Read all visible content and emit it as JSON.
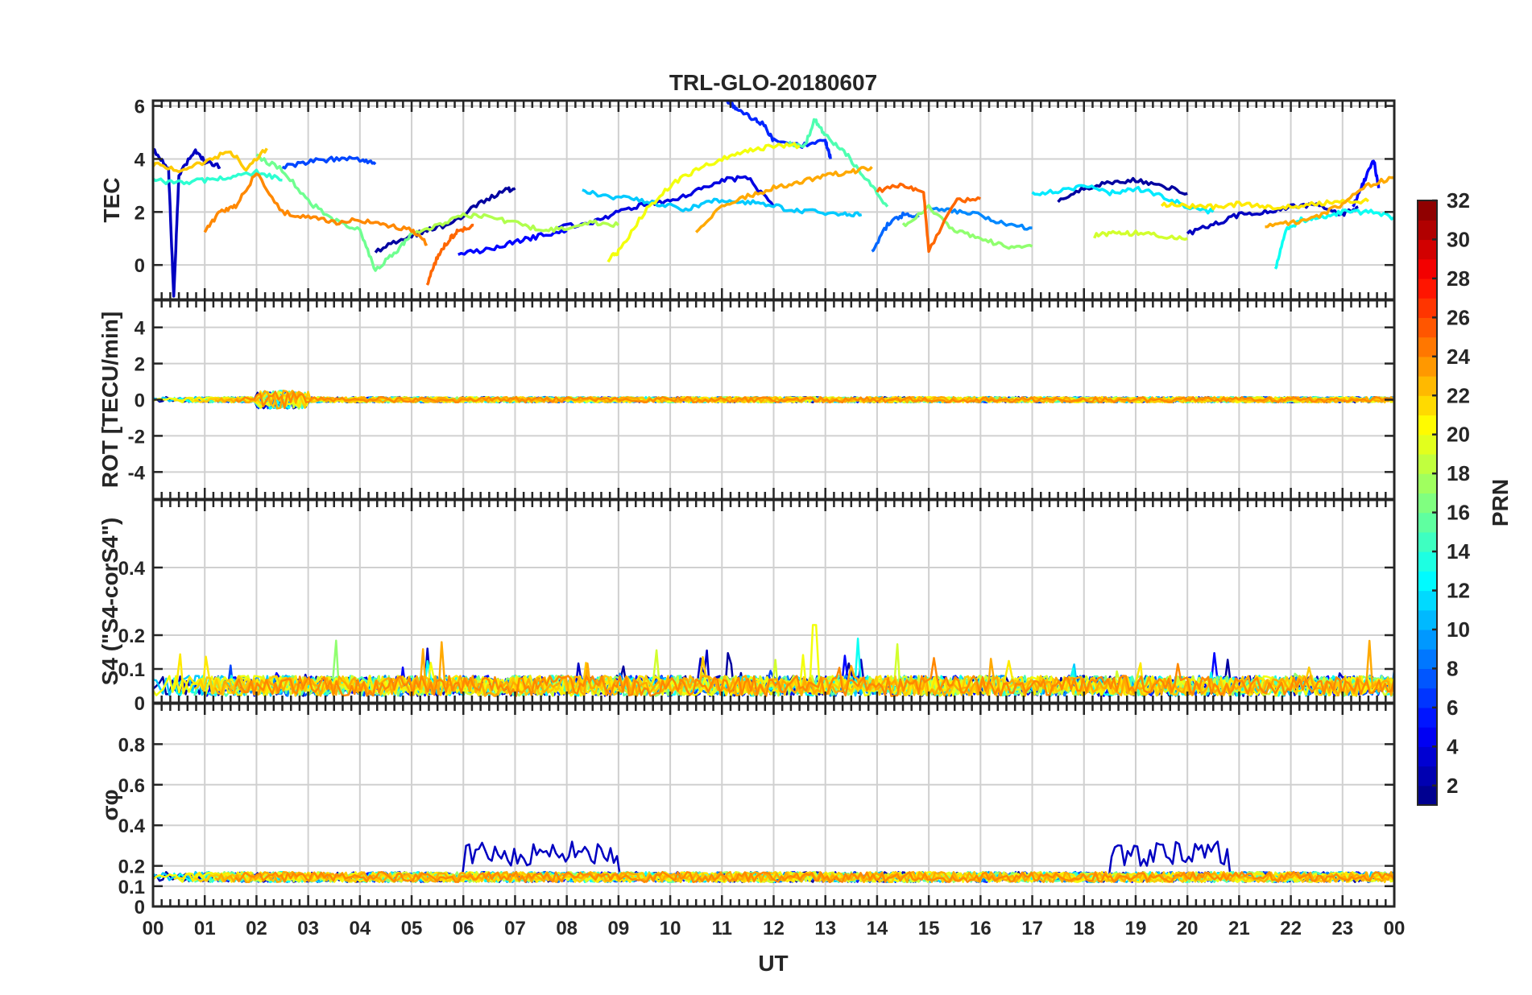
{
  "chart_data": {
    "type": "line",
    "title": "TRL-GLO-20180607",
    "xlabel": "UT",
    "x_tick_labels": [
      "00",
      "01",
      "02",
      "03",
      "04",
      "05",
      "06",
      "07",
      "08",
      "09",
      "10",
      "11",
      "12",
      "13",
      "14",
      "15",
      "16",
      "17",
      "18",
      "19",
      "20",
      "21",
      "22",
      "23",
      "00"
    ],
    "xlim": [
      0,
      24
    ],
    "panels": [
      {
        "id": "tec",
        "ylabel": "TEC",
        "ylim": [
          -1.3,
          6.2
        ],
        "yticks": [
          0,
          2,
          4,
          6
        ],
        "ytick_labels": [
          "0",
          "2",
          "4",
          "6"
        ],
        "series": [
          {
            "prn": 3,
            "x": [
              0.0,
              0.3,
              0.4,
              0.5,
              0.8,
              1.0,
              1.3
            ],
            "y": [
              4.4,
              3.6,
              -1.2,
              3.4,
              4.3,
              3.9,
              3.7
            ]
          },
          {
            "prn": 7,
            "x": [
              2.5,
              3.0,
              3.5,
              4.0,
              4.3
            ],
            "y": [
              3.7,
              3.9,
              4.0,
              4.0,
              3.8
            ]
          },
          {
            "prn": 2,
            "x": [
              4.3,
              4.8,
              5.3,
              5.8,
              6.3,
              6.8,
              7.0
            ],
            "y": [
              0.5,
              1.0,
              1.3,
              1.6,
              2.3,
              2.8,
              2.9
            ]
          },
          {
            "prn": 5,
            "x": [
              5.9,
              6.5,
              7.0,
              7.5,
              8.0
            ],
            "y": [
              0.4,
              0.6,
              0.9,
              1.1,
              1.3
            ]
          },
          {
            "prn": 4,
            "x": [
              7.8,
              8.5,
              9.0,
              9.5,
              10.0,
              10.5,
              11.0,
              11.5,
              12.0
            ],
            "y": [
              1.4,
              1.6,
              2.0,
              2.3,
              2.4,
              2.8,
              3.2,
              3.3,
              2.2
            ]
          },
          {
            "prn": 6,
            "x": [
              11.1,
              11.3,
              11.6,
              11.8,
              12.0,
              12.5,
              13.0,
              13.1
            ],
            "y": [
              6.2,
              5.9,
              5.5,
              5.3,
              4.7,
              4.5,
              4.7,
              4.0
            ]
          },
          {
            "prn": 8,
            "x": [
              13.9,
              14.2,
              14.5,
              14.8
            ],
            "y": [
              0.5,
              1.5,
              1.9,
              1.8
            ]
          },
          {
            "prn": 9,
            "x": [
              15.0,
              15.5,
              16.0,
              16.5,
              17.0
            ],
            "y": [
              2.2,
              2.0,
              1.9,
              1.5,
              1.4
            ]
          },
          {
            "prn": 2,
            "x": [
              17.5,
              18.0,
              18.5,
              19.0,
              19.5,
              20.0
            ],
            "y": [
              2.4,
              2.9,
              3.1,
              3.2,
              3.0,
              2.7
            ]
          },
          {
            "prn": 3,
            "x": [
              20.0,
              20.5,
              21.0,
              21.5,
              22.0,
              22.5,
              23.0,
              23.3
            ],
            "y": [
              1.2,
              1.5,
              1.9,
              2.0,
              2.2,
              2.3,
              1.9,
              2.2
            ]
          },
          {
            "prn": 5,
            "x": [
              23.2,
              23.4,
              23.6,
              23.7
            ],
            "y": [
              2.2,
              3.1,
              4.0,
              2.9
            ]
          },
          {
            "prn": 11,
            "x": [
              8.3,
              8.8,
              9.3,
              9.8,
              10.3,
              10.8,
              11.3,
              11.8,
              12.3,
              12.8,
              13.3,
              13.7
            ],
            "y": [
              2.8,
              2.6,
              2.5,
              2.3,
              2.1,
              2.4,
              2.4,
              2.3,
              2.1,
              2.0,
              1.9,
              1.9
            ]
          },
          {
            "prn": 12,
            "x": [
              17.0,
              17.5,
              18.0,
              18.5,
              19.0,
              19.5,
              20.0,
              20.5
            ],
            "y": [
              2.7,
              2.8,
              3.0,
              2.7,
              2.9,
              2.6,
              2.2,
              2.0
            ]
          },
          {
            "prn": 13,
            "x": [
              21.7,
              21.9,
              22.2,
              22.6,
              23.0,
              23.5,
              24.0
            ],
            "y": [
              -0.2,
              1.3,
              1.7,
              1.8,
              2.0,
              2.0,
              1.8
            ]
          },
          {
            "prn": 14,
            "x": [
              0.0,
              0.5,
              1.0,
              1.5,
              2.0,
              2.5
            ],
            "y": [
              3.2,
              3.1,
              3.2,
              3.3,
              3.5,
              3.2
            ]
          },
          {
            "prn": 15,
            "x": [
              12.3,
              12.6,
              12.8,
              13.0,
              13.4,
              13.8,
              14.2
            ],
            "y": [
              4.6,
              4.5,
              5.5,
              4.9,
              4.2,
              3.2,
              2.2
            ]
          },
          {
            "prn": 16,
            "x": [
              2.0,
              2.5,
              3.0,
              3.5,
              4.0,
              4.3,
              4.7,
              5.0
            ],
            "y": [
              4.1,
              3.6,
              2.4,
              1.7,
              1.3,
              -0.2,
              0.5,
              1.2
            ]
          },
          {
            "prn": 17,
            "x": [
              14.5,
              15.0,
              15.5,
              16.0,
              16.5,
              17.0
            ],
            "y": [
              1.5,
              2.2,
              1.3,
              1.0,
              0.7,
              0.7
            ]
          },
          {
            "prn": 18,
            "x": [
              5.0,
              5.5,
              6.0,
              6.5,
              7.0,
              7.5,
              8.0,
              8.5,
              9.0
            ],
            "y": [
              1.2,
              1.5,
              1.9,
              1.8,
              1.6,
              1.3,
              1.4,
              1.6,
              1.5
            ]
          },
          {
            "prn": 19,
            "x": [
              18.2,
              18.6,
              19.0,
              19.5,
              20.0
            ],
            "y": [
              1.1,
              1.2,
              1.2,
              1.1,
              1.0
            ]
          },
          {
            "prn": 20,
            "x": [
              8.8,
              9.0,
              9.5,
              10.0,
              10.5,
              11.0,
              11.5,
              12.0,
              12.5
            ],
            "y": [
              0.2,
              0.5,
              2.0,
              3.0,
              3.6,
              4.0,
              4.3,
              4.5,
              4.5
            ]
          },
          {
            "prn": 21,
            "x": [
              19.5,
              20.0,
              20.5,
              21.0,
              21.5,
              22.0,
              22.5,
              23.0,
              23.5
            ],
            "y": [
              2.3,
              2.2,
              2.2,
              2.3,
              2.2,
              2.2,
              2.3,
              2.4,
              2.4
            ]
          },
          {
            "prn": 22,
            "x": [
              0.0,
              0.5,
              1.0,
              1.5,
              1.8,
              2.2
            ],
            "y": [
              3.8,
              3.6,
              3.9,
              4.3,
              3.6,
              4.4
            ]
          },
          {
            "prn": 23,
            "x": [
              10.5,
              11.0,
              11.5,
              12.0,
              12.5,
              13.0,
              13.5,
              13.9
            ],
            "y": [
              1.3,
              2.2,
              2.6,
              2.9,
              3.1,
              3.4,
              3.5,
              3.7
            ]
          },
          {
            "prn": 23,
            "x": [
              21.5,
              22.0,
              22.5,
              23.0,
              23.5,
              24.0
            ],
            "y": [
              1.5,
              1.6,
              1.8,
              2.3,
              3.0,
              3.3
            ]
          },
          {
            "prn": 24,
            "x": [
              1.0,
              1.3,
              1.6,
              2.0,
              2.5,
              3.0,
              3.5,
              4.0,
              4.5,
              5.0,
              5.3
            ],
            "y": [
              1.3,
              2.0,
              2.2,
              3.5,
              2.0,
              1.8,
              1.6,
              1.7,
              1.5,
              1.3,
              0.8
            ]
          },
          {
            "prn": 25,
            "x": [
              5.3,
              5.5,
              5.7,
              5.9,
              6.2
            ],
            "y": [
              -0.7,
              0.3,
              0.9,
              1.3,
              1.5
            ]
          },
          {
            "prn": 25,
            "x": [
              14.0,
              14.5,
              14.9,
              15.0,
              15.5,
              16.0
            ],
            "y": [
              2.8,
              3.0,
              2.8,
              0.5,
              2.4,
              2.5
            ]
          }
        ]
      },
      {
        "id": "rot",
        "ylabel": "ROT [TECU/min]",
        "ylim": [
          -5.5,
          5.5
        ],
        "yticks": [
          -4,
          -2,
          0,
          2,
          4
        ],
        "ytick_labels": [
          "-4",
          "-2",
          "0",
          "2",
          "4"
        ],
        "description": "All PRNs near 0 TECU/min with small fluctuations of about ±0.3, largest near 02-03 UT (~±0.7)"
      },
      {
        "id": "s4",
        "ylabel": "S4 (\"S4-corS4\")",
        "ylim": [
          0,
          0.6
        ],
        "yticks": [
          0,
          0.1,
          0.2,
          0.4
        ],
        "ytick_labels": [
          "0",
          "0.1",
          "0.2",
          "0.4"
        ],
        "description": "Background S4 ~0.02-0.08 for all PRNs, isolated spikes up to ~0.23 near 12.8 UT"
      },
      {
        "id": "sigma_phi",
        "ylabel": "σφ",
        "ylim": [
          0,
          1
        ],
        "yticks": [
          0,
          0.1,
          0.2,
          0.4,
          0.6,
          0.8
        ],
        "ytick_labels": [
          "0",
          "0.1",
          "0.2",
          "0.4",
          "0.6",
          "0.8"
        ],
        "description": "Background sigma-phi ~0.12-0.18; PRN ~3 elevated to 0.2-0.33 between 06 and 09 UT and 0.2-0.38 between 18.5 and 20.8 UT"
      }
    ],
    "colorbar": {
      "label": "PRN",
      "range": [
        1,
        32
      ],
      "tick_labels": [
        "2",
        "4",
        "6",
        "8",
        "10",
        "12",
        "14",
        "16",
        "18",
        "20",
        "22",
        "24",
        "26",
        "28",
        "30",
        "32"
      ],
      "colormap": "jet"
    }
  }
}
